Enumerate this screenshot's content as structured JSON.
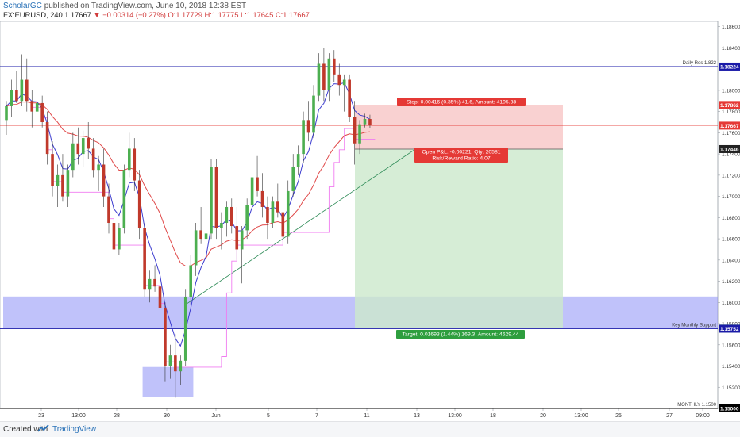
{
  "header": {
    "author": "ScholarGC",
    "published_text": "published on TradingView.com, June 10, 2018 12:38 EST",
    "symbol": "FX:EURUSD, 240",
    "last": "1.17667",
    "arrow": "▼",
    "change": "−0.00314 (−0.27%)",
    "ohlc_o": "O:1.17729",
    "ohlc_h": "H:1.17775",
    "ohlc_l": "L:1.17645",
    "ohlc_c": "C:1.17667"
  },
  "footer": {
    "created_with": "Created with",
    "brand": "TradingView"
  },
  "colors": {
    "up": "#4caf50",
    "down": "#c0392b",
    "ema_fast": "#3c3ccf",
    "ema_slow": "#e04a4a",
    "envelope": "#f07cf0",
    "zone": "#8c8ff5",
    "stop_zone": "#f8c9c9",
    "target_zone": "#cce9cc"
  },
  "chart_data": {
    "type": "candlestick",
    "symbol": "FX:EURUSD",
    "interval": "240",
    "ylim": [
      1.15,
      1.1865
    ],
    "y_ticks": [
      "1.18600",
      "1.18400",
      "1.18000",
      "1.17800",
      "1.17600",
      "1.17400",
      "1.17200",
      "1.17000",
      "1.16800",
      "1.16600",
      "1.16400",
      "1.16200",
      "1.16000",
      "1.15800",
      "1.15600",
      "1.15400",
      "1.15200",
      "1.15000"
    ],
    "x_ticks": [
      "23",
      "13:00",
      "28",
      "30",
      "Jun",
      "5",
      "7",
      "11",
      "13",
      "13:00",
      "18",
      "20",
      "13:00",
      "25",
      "27",
      "09:00"
    ],
    "candles": [
      [
        1.1772,
        1.179,
        1.1758,
        1.1785
      ],
      [
        1.1785,
        1.181,
        1.1775,
        1.18
      ],
      [
        1.18,
        1.1818,
        1.1788,
        1.179
      ],
      [
        1.179,
        1.1834,
        1.1785,
        1.181
      ],
      [
        1.181,
        1.183,
        1.178,
        1.179
      ],
      [
        1.179,
        1.18,
        1.1765,
        1.178
      ],
      [
        1.178,
        1.1792,
        1.177,
        1.1788
      ],
      [
        1.1788,
        1.1795,
        1.1765,
        1.177
      ],
      [
        1.177,
        1.178,
        1.173,
        1.174
      ],
      [
        1.174,
        1.1752,
        1.17,
        1.171
      ],
      [
        1.171,
        1.173,
        1.169,
        1.172
      ],
      [
        1.172,
        1.174,
        1.1695,
        1.17
      ],
      [
        1.17,
        1.173,
        1.169,
        1.1725
      ],
      [
        1.1725,
        1.176,
        1.1718,
        1.175
      ],
      [
        1.175,
        1.1765,
        1.173,
        1.174
      ],
      [
        1.174,
        1.1762,
        1.1728,
        1.1755
      ],
      [
        1.1755,
        1.177,
        1.1735,
        1.1745
      ],
      [
        1.1745,
        1.1755,
        1.1718,
        1.1725
      ],
      [
        1.1725,
        1.1738,
        1.1705,
        1.173
      ],
      [
        1.173,
        1.1745,
        1.169,
        1.17
      ],
      [
        1.17,
        1.1712,
        1.1665,
        1.1675
      ],
      [
        1.1675,
        1.169,
        1.164,
        1.165
      ],
      [
        1.165,
        1.1675,
        1.1645,
        1.167
      ],
      [
        1.167,
        1.173,
        1.1665,
        1.1725
      ],
      [
        1.1725,
        1.176,
        1.1718,
        1.1745
      ],
      [
        1.1745,
        1.1755,
        1.1705,
        1.1715
      ],
      [
        1.1715,
        1.1725,
        1.166,
        1.167
      ],
      [
        1.167,
        1.1675,
        1.1605,
        1.1612
      ],
      [
        1.1612,
        1.163,
        1.16,
        1.1622
      ],
      [
        1.1622,
        1.1635,
        1.161,
        1.1615
      ],
      [
        1.1615,
        1.1625,
        1.158,
        1.1595
      ],
      [
        1.1595,
        1.16,
        1.1525,
        1.154
      ],
      [
        1.154,
        1.156,
        1.1528,
        1.155
      ],
      [
        1.155,
        1.157,
        1.151,
        1.1535
      ],
      [
        1.1535,
        1.155,
        1.1522,
        1.1545
      ],
      [
        1.1545,
        1.1612,
        1.154,
        1.1605
      ],
      [
        1.1605,
        1.1645,
        1.1598,
        1.1635
      ],
      [
        1.1635,
        1.1675,
        1.1625,
        1.1668
      ],
      [
        1.1668,
        1.169,
        1.1655,
        1.166
      ],
      [
        1.166,
        1.167,
        1.164,
        1.1665
      ],
      [
        1.1665,
        1.1735,
        1.166,
        1.1728
      ],
      [
        1.1728,
        1.1735,
        1.166,
        1.167
      ],
      [
        1.167,
        1.1685,
        1.165,
        1.1675
      ],
      [
        1.1675,
        1.1695,
        1.1662,
        1.169
      ],
      [
        1.169,
        1.1698,
        1.1665,
        1.1672
      ],
      [
        1.1672,
        1.169,
        1.164,
        1.165
      ],
      [
        1.165,
        1.1672,
        1.1618,
        1.1668
      ],
      [
        1.1668,
        1.1698,
        1.166,
        1.1692
      ],
      [
        1.1692,
        1.1725,
        1.1685,
        1.1718
      ],
      [
        1.1718,
        1.1738,
        1.17,
        1.1705
      ],
      [
        1.1705,
        1.1722,
        1.168,
        1.169
      ],
      [
        1.169,
        1.17,
        1.166,
        1.1675
      ],
      [
        1.1675,
        1.17,
        1.167,
        1.1695
      ],
      [
        1.1695,
        1.1712,
        1.168,
        1.1685
      ],
      [
        1.1685,
        1.1695,
        1.1652,
        1.1662
      ],
      [
        1.1662,
        1.1715,
        1.1655,
        1.1705
      ],
      [
        1.1705,
        1.174,
        1.17,
        1.1728
      ],
      [
        1.1728,
        1.1748,
        1.172,
        1.174
      ],
      [
        1.174,
        1.178,
        1.1732,
        1.1772
      ],
      [
        1.1772,
        1.179,
        1.1752,
        1.176
      ],
      [
        1.176,
        1.1805,
        1.1755,
        1.1795
      ],
      [
        1.1795,
        1.1835,
        1.179,
        1.1825
      ],
      [
        1.1825,
        1.184,
        1.179,
        1.18
      ],
      [
        1.18,
        1.1835,
        1.179,
        1.183
      ],
      [
        1.183,
        1.1838,
        1.1808,
        1.1815
      ],
      [
        1.1815,
        1.1825,
        1.1795,
        1.1805
      ],
      [
        1.1805,
        1.1815,
        1.178,
        1.181
      ],
      [
        1.181,
        1.1815,
        1.177,
        1.1775
      ],
      [
        1.1775,
        1.179,
        1.173,
        1.175
      ],
      [
        1.175,
        1.1772,
        1.174,
        1.1768
      ],
      [
        1.1768,
        1.1778,
        1.1765,
        1.1773
      ],
      [
        1.1773,
        1.1777,
        1.1764,
        1.1767
      ]
    ],
    "levels": [
      {
        "label": "Daily Res 1.822",
        "tag": "1.18224",
        "price": 1.18224,
        "color": "#1a1aa8"
      },
      {
        "label": "Key Monthly Support",
        "tag": "1.15752",
        "price": 1.15752,
        "color": "#1a1aa8"
      },
      {
        "label": "MONTHLY 1.1500",
        "tag": "1.15000",
        "price": 1.15,
        "color": "#000000"
      }
    ],
    "price_tags": [
      {
        "text": "1.17862",
        "price": 1.17862,
        "color": "#e53935"
      },
      {
        "text": "1.17667",
        "price": 1.17667,
        "color": "#e53935"
      },
      {
        "text": "1.17446",
        "price": 1.17446,
        "color": "#222222"
      },
      {
        "text": "1.15753",
        "price": 1.15753,
        "color": "#4caf50"
      }
    ],
    "position": {
      "entry": 1.17446,
      "stop": 1.17862,
      "target": 1.15753,
      "current": 1.17667,
      "stop_label": "Stop: 0.00416 (0.35%) 41.6, Amount: 4195.38",
      "target_label": "Target: 0.01693 (1.44%) 169.3, Amount: 4629.44",
      "pnl_label": "Open P&L: -0.00221, Qty: 20581",
      "rr_label": "Risk/Reward Ratio: 4.07"
    },
    "zones": [
      {
        "from": 1.15751,
        "to": 1.16056,
        "kind": "monthly-support-zone"
      },
      {
        "from": 1.15105,
        "to": 1.15391,
        "kind": "low-box"
      }
    ],
    "trendline": {
      "from": [
        35,
        1.1598
      ],
      "to": [
        80,
        1.1745
      ]
    }
  }
}
